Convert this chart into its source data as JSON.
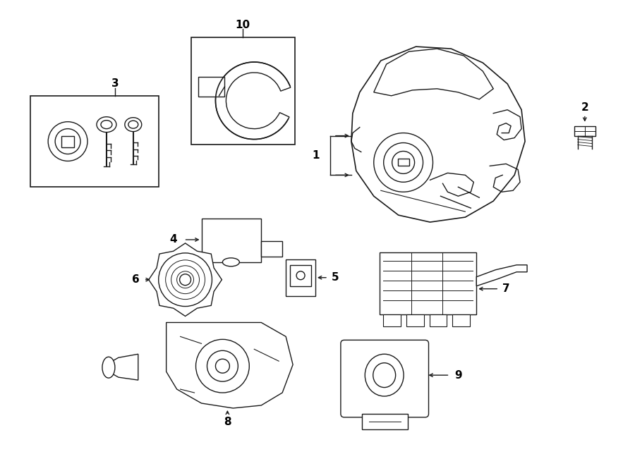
{
  "bg_color": "#ffffff",
  "line_color": "#1a1a1a",
  "fig_width": 9.0,
  "fig_height": 6.61,
  "dpi": 100,
  "lw": 1.0
}
